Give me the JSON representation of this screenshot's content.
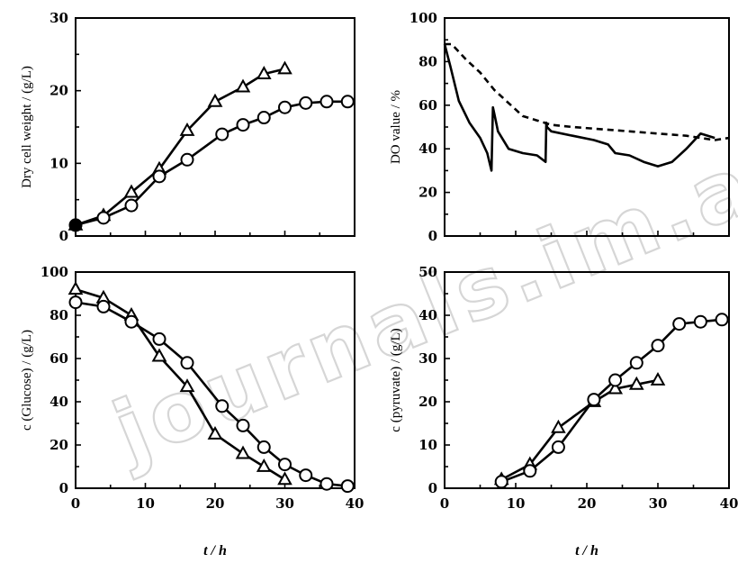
{
  "watermark": "journals.im.ac.cn",
  "chart_data": [
    {
      "id": "dcw",
      "type": "line",
      "ylabel": "Dry cell weight / (g/L)",
      "xlabel": "",
      "xlim": [
        0,
        40
      ],
      "ylim": [
        0,
        30
      ],
      "xticks": [
        0,
        10,
        20,
        30,
        40
      ],
      "yticks": [
        0,
        10,
        20,
        30
      ],
      "xticklabels": [
        "",
        "",
        "",
        "",
        ""
      ],
      "yticklabels": [
        "0",
        "10",
        "20",
        "30"
      ],
      "series": [
        {
          "marker": "triangle",
          "x": [
            0,
            4,
            8,
            12,
            16,
            20,
            24,
            27,
            30
          ],
          "y": [
            1.5,
            2.8,
            6,
            9.2,
            14.5,
            18.5,
            20.5,
            22.3,
            23
          ]
        },
        {
          "marker": "circle",
          "x": [
            0,
            4,
            8,
            12,
            16,
            21,
            24,
            27,
            30,
            33,
            36,
            39
          ],
          "y": [
            1.5,
            2.5,
            4.2,
            8.2,
            10.5,
            14,
            15.3,
            16.3,
            17.7,
            18.3,
            18.5,
            18.5
          ]
        }
      ]
    },
    {
      "id": "do",
      "type": "line",
      "ylabel": "DO value / %",
      "xlabel": "",
      "xlim": [
        0,
        40
      ],
      "ylim": [
        0,
        100
      ],
      "xticks": [
        0,
        10,
        20,
        30,
        40
      ],
      "yticks": [
        0,
        20,
        40,
        60,
        80,
        100
      ],
      "xticklabels": [
        "",
        "",
        "",
        "",
        ""
      ],
      "yticklabels": [
        "0",
        "20",
        "40",
        "60",
        "80",
        "100"
      ],
      "series": [
        {
          "style": "solid",
          "x": [
            0,
            0.8,
            2,
            3.5,
            5,
            6,
            6.6,
            6.8,
            7,
            7.5,
            9,
            11,
            13,
            14.2,
            14.3,
            14.4,
            15,
            18,
            21,
            23,
            24,
            26,
            28,
            30,
            32,
            34,
            36,
            38
          ],
          "y": [
            88,
            78,
            62,
            52,
            45,
            38,
            30,
            59,
            56,
            48,
            40,
            38,
            37,
            34,
            52,
            50,
            48,
            46,
            44,
            42,
            38,
            37,
            34,
            32,
            34,
            40,
            47,
            45
          ]
        },
        {
          "style": "dashed",
          "x": [
            0,
            1,
            3,
            5,
            7,
            9,
            11,
            13,
            15,
            18,
            22,
            26,
            30,
            34,
            36,
            38,
            40
          ],
          "y": [
            88,
            88,
            81,
            75,
            67,
            61,
            55,
            53,
            51,
            50,
            49,
            48,
            47,
            46,
            45,
            44,
            45
          ]
        }
      ]
    },
    {
      "id": "glucose",
      "type": "line",
      "ylabel": "c (Glucose) / (g/L)",
      "xlabel": "t / h",
      "xlim": [
        0,
        40
      ],
      "ylim": [
        0,
        100
      ],
      "xticks": [
        0,
        10,
        20,
        30,
        40
      ],
      "yticks": [
        0,
        20,
        40,
        60,
        80,
        100
      ],
      "xticklabels": [
        "0",
        "10",
        "20",
        "30",
        "40"
      ],
      "yticklabels": [
        "0",
        "20",
        "40",
        "60",
        "80",
        "100"
      ],
      "series": [
        {
          "marker": "triangle",
          "x": [
            0,
            4,
            8,
            12,
            16,
            20,
            24,
            27,
            30
          ],
          "y": [
            92,
            88,
            80,
            61,
            47,
            25,
            16,
            10,
            4
          ]
        },
        {
          "marker": "circle",
          "x": [
            0,
            4,
            8,
            12,
            16,
            21,
            24,
            27,
            30,
            33,
            36,
            39
          ],
          "y": [
            86,
            84,
            77,
            69,
            58,
            38,
            29,
            19,
            11,
            6,
            2,
            1
          ]
        }
      ]
    },
    {
      "id": "pyruvate",
      "type": "line",
      "ylabel": "c (pyruvate) / (g/L)",
      "xlabel": "t / h",
      "xlim": [
        0,
        40
      ],
      "ylim": [
        0,
        50
      ],
      "xticks": [
        0,
        10,
        20,
        30,
        40
      ],
      "yticks": [
        0,
        10,
        20,
        30,
        40,
        50
      ],
      "xticklabels": [
        "0",
        "10",
        "20",
        "30",
        "40"
      ],
      "yticklabels": [
        "0",
        "10",
        "20",
        "30",
        "40",
        "50"
      ],
      "series": [
        {
          "marker": "triangle",
          "x": [
            8,
            12,
            16,
            21,
            24,
            27,
            30
          ],
          "y": [
            2,
            5.5,
            14,
            20,
            23,
            24,
            25
          ]
        },
        {
          "marker": "circle",
          "x": [
            8,
            12,
            16,
            21,
            24,
            27,
            30,
            33,
            36,
            39
          ],
          "y": [
            1.5,
            4,
            9.5,
            20.5,
            25,
            29,
            33,
            38,
            38.5,
            39
          ]
        }
      ]
    }
  ]
}
